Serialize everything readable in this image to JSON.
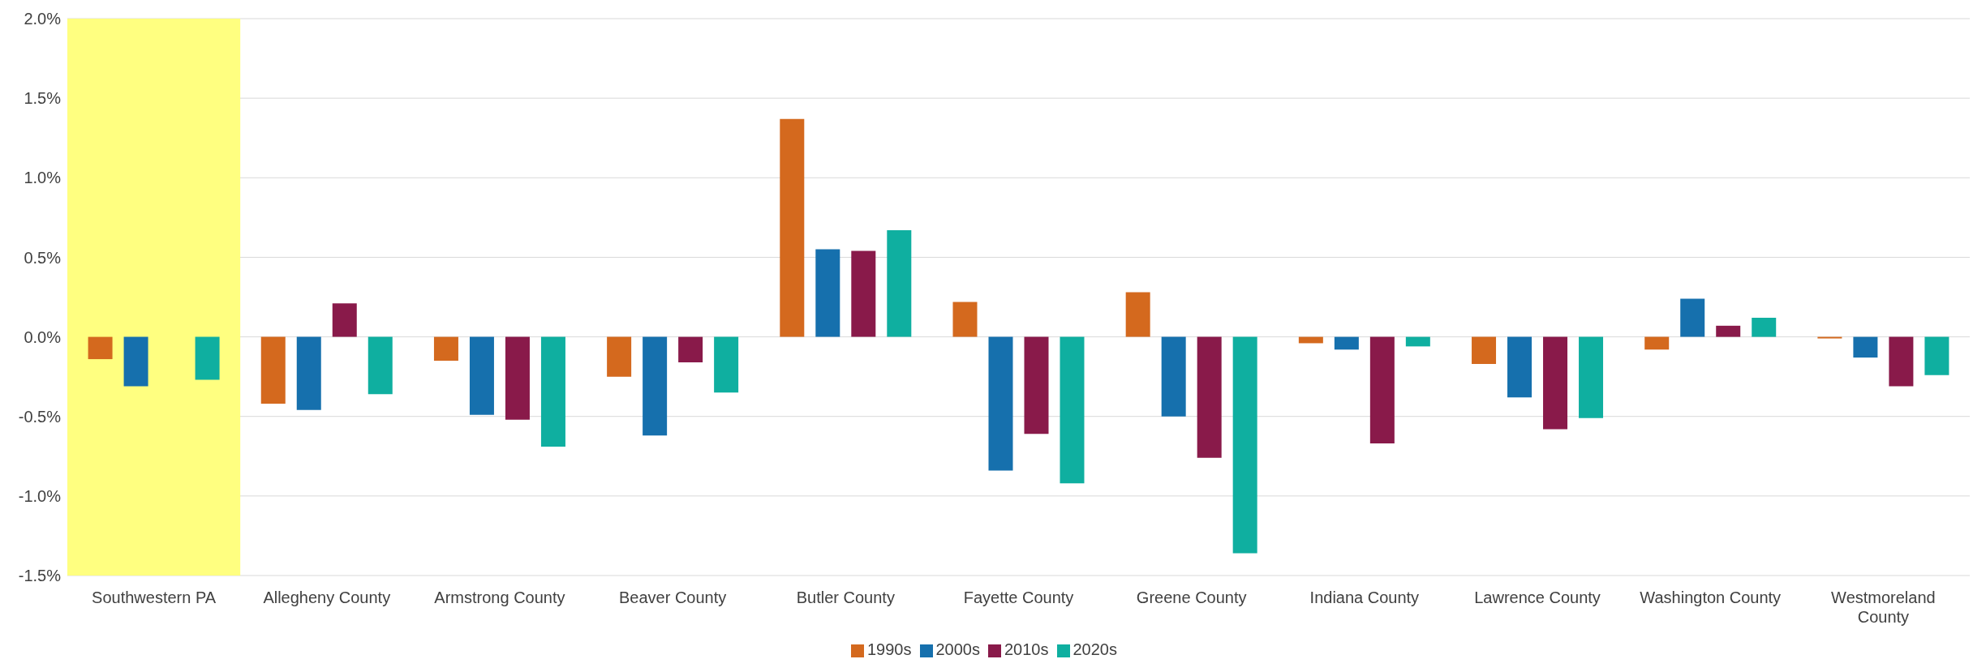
{
  "chart_data": {
    "type": "bar",
    "categories": [
      "Southwestern PA",
      "Allegheny County",
      "Armstrong County",
      "Beaver County",
      "Butler County",
      "Fayette County",
      "Greene County",
      "Indiana County",
      "Lawrence County",
      "Washington County",
      "Westmoreland County"
    ],
    "series": [
      {
        "name": "1990s",
        "color": "#d4691e",
        "values": [
          -0.14,
          -0.42,
          -0.15,
          -0.25,
          1.37,
          0.22,
          0.28,
          -0.04,
          -0.17,
          -0.08,
          -0.01
        ]
      },
      {
        "name": "2000s",
        "color": "#1670ad",
        "values": [
          -0.31,
          -0.46,
          -0.49,
          -0.62,
          0.55,
          -0.84,
          -0.5,
          -0.08,
          -0.38,
          0.24,
          -0.13
        ]
      },
      {
        "name": "2010s",
        "color": "#891a4a",
        "values": [
          0.0,
          0.21,
          -0.52,
          -0.16,
          0.54,
          -0.61,
          -0.76,
          -0.67,
          -0.58,
          0.07,
          -0.31
        ]
      },
      {
        "name": "2020s",
        "color": "#0fafa0",
        "values": [
          -0.27,
          -0.36,
          -0.69,
          -0.35,
          0.67,
          -0.92,
          -1.36,
          -0.06,
          -0.51,
          0.12,
          -0.24
        ]
      }
    ],
    "ylim": [
      -1.5,
      2.0
    ],
    "yticks": [
      {
        "value": -1.5,
        "label": "-1.5%"
      },
      {
        "value": -1,
        "label": "-1.0%"
      },
      {
        "value": -0.5,
        "label": "-0.5%"
      },
      {
        "value": 0,
        "label": "0.0%"
      },
      {
        "value": 0.5,
        "label": "0.5%"
      },
      {
        "value": 1,
        "label": "1.0%"
      },
      {
        "value": 1.5,
        "label": "1.5%"
      },
      {
        "value": 2,
        "label": "2.0%"
      }
    ],
    "bands": [
      {
        "axis": "x",
        "from": "Southwestern PA",
        "to": "Southwestern PA",
        "color": "#ffff80"
      }
    ],
    "grid": "y",
    "legend": "bottom"
  }
}
